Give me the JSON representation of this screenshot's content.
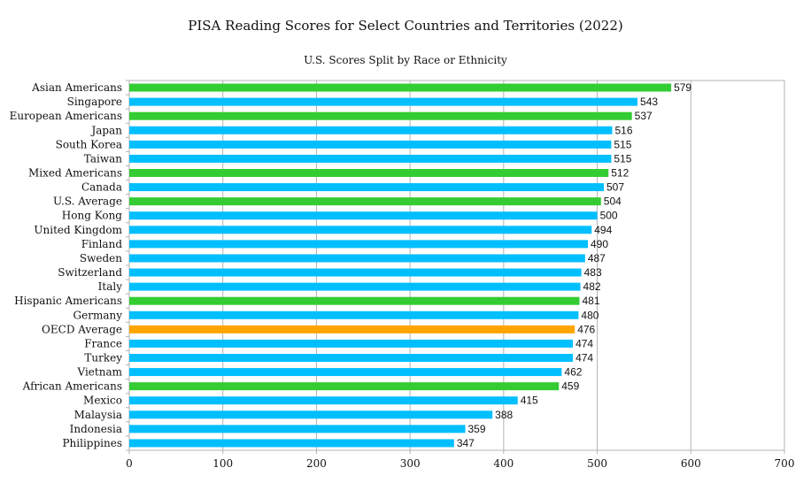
{
  "colors": {
    "countries": "#00bfff",
    "us_groups": "#33cc33",
    "oecd": "#ffa500",
    "grid": "#b3b3b3"
  },
  "chart_data": {
    "type": "bar",
    "orientation": "horizontal",
    "title": "PISA Reading Scores for Select Countries and Territories (2022)",
    "subtitle": "U.S. Scores Split by Race or Ethnicity",
    "xlabel": "",
    "ylabel": "",
    "xlim": [
      0,
      700
    ],
    "xticks": [
      0,
      100,
      200,
      300,
      400,
      500,
      600,
      700
    ],
    "grid": "vertical",
    "categories": [
      "Asian Americans",
      "Singapore",
      "European Americans",
      "Japan",
      "South Korea",
      "Taiwan",
      "Mixed Americans",
      "Canada",
      "U.S. Average",
      "Hong Kong",
      "United Kingdom",
      "Finland",
      "Sweden",
      "Switzerland",
      "Italy",
      "Hispanic Americans",
      "Germany",
      "OECD Average",
      "France",
      "Turkey",
      "Vietnam",
      "African Americans",
      "Mexico",
      "Malaysia",
      "Indonesia",
      "Philippines"
    ],
    "values": [
      579,
      543,
      537,
      516,
      515,
      515,
      512,
      507,
      504,
      500,
      494,
      490,
      487,
      483,
      482,
      481,
      480,
      476,
      474,
      474,
      462,
      459,
      415,
      388,
      359,
      347
    ],
    "groups": [
      "us",
      "country",
      "us",
      "country",
      "country",
      "country",
      "us",
      "country",
      "us",
      "country",
      "country",
      "country",
      "country",
      "country",
      "country",
      "us",
      "country",
      "oecd",
      "country",
      "country",
      "country",
      "us",
      "country",
      "country",
      "country",
      "country"
    ]
  }
}
